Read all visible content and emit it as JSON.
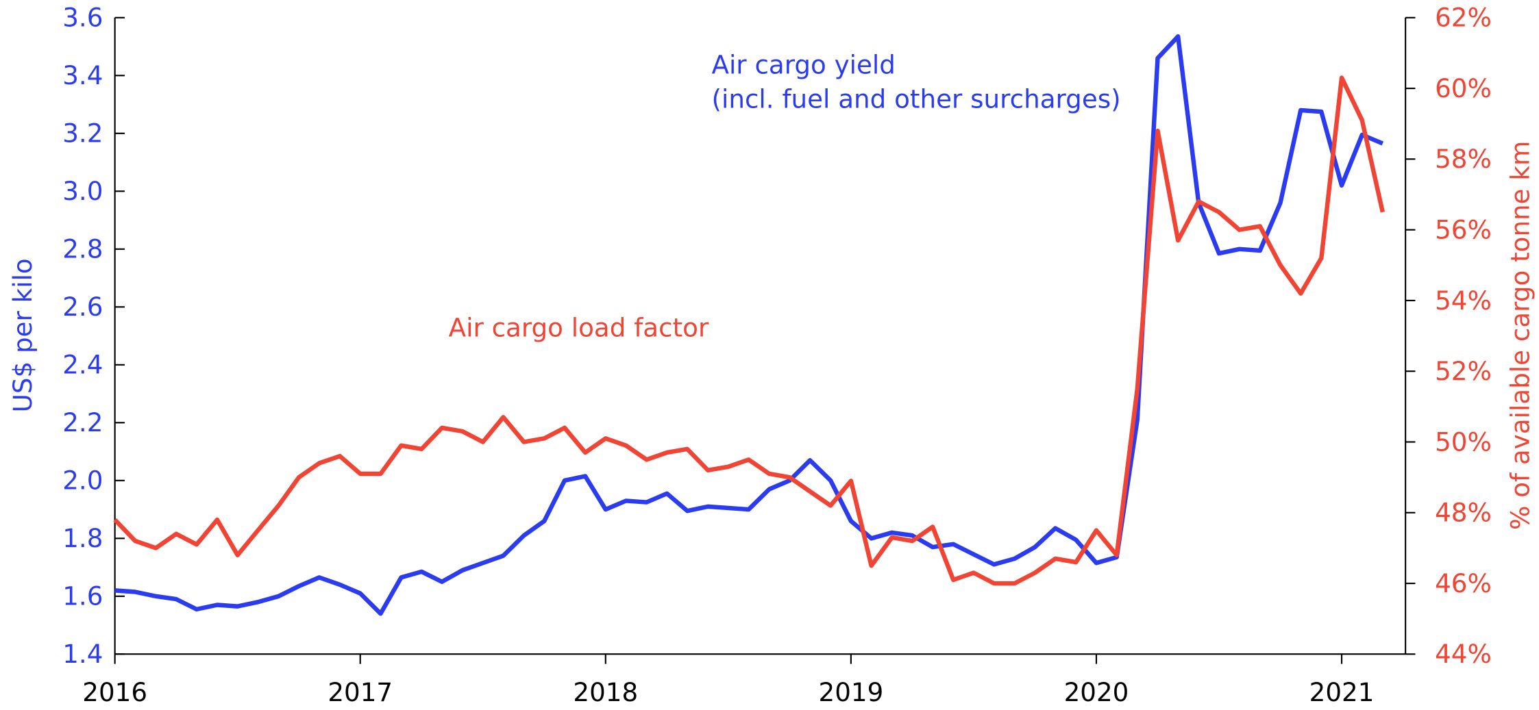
{
  "chart_data": {
    "type": "line",
    "x": [
      2016,
      2016.083,
      2016.167,
      2016.25,
      2016.333,
      2016.417,
      2016.5,
      2016.583,
      2016.667,
      2016.75,
      2016.833,
      2016.917,
      2017,
      2017.083,
      2017.167,
      2017.25,
      2017.333,
      2017.417,
      2017.5,
      2017.583,
      2017.667,
      2017.75,
      2017.833,
      2017.917,
      2018,
      2018.083,
      2018.167,
      2018.25,
      2018.333,
      2018.417,
      2018.5,
      2018.583,
      2018.667,
      2018.75,
      2018.833,
      2018.917,
      2019,
      2019.083,
      2019.167,
      2019.25,
      2019.333,
      2019.417,
      2019.5,
      2019.583,
      2019.667,
      2019.75,
      2019.833,
      2019.917,
      2020,
      2020.083,
      2020.167,
      2020.25,
      2020.333,
      2020.417,
      2020.5,
      2020.583,
      2020.667,
      2020.75,
      2020.833,
      2020.917,
      2021,
      2021.083,
      2021.167
    ],
    "series": [
      {
        "name": "Air cargo yield",
        "color": "#2b3cf0",
        "axis": "y",
        "values": [
          1.62,
          1.615,
          1.6,
          1.59,
          1.555,
          1.57,
          1.565,
          1.58,
          1.6,
          1.635,
          1.665,
          1.64,
          1.61,
          1.54,
          1.665,
          1.685,
          1.65,
          1.69,
          1.715,
          1.74,
          1.81,
          1.86,
          2.0,
          2.015,
          1.9,
          1.93,
          1.925,
          1.955,
          1.895,
          1.91,
          1.905,
          1.9,
          1.97,
          2.0,
          2.07,
          2.0,
          1.86,
          1.8,
          1.82,
          1.81,
          1.77,
          1.78,
          1.745,
          1.71,
          1.73,
          1.77,
          1.835,
          1.795,
          1.715,
          1.735,
          2.21,
          3.46,
          3.535,
          2.96,
          2.785,
          2.8,
          2.795,
          2.96,
          3.28,
          3.275,
          3.02,
          3.195,
          3.165
        ]
      },
      {
        "name": "Air cargo load factor",
        "color": "#f04434",
        "axis": "y2",
        "values": [
          47.8,
          47.2,
          47.0,
          47.4,
          47.1,
          47.8,
          46.8,
          47.5,
          48.2,
          49.0,
          49.4,
          49.6,
          49.1,
          49.1,
          49.9,
          49.8,
          50.4,
          50.3,
          50.0,
          50.7,
          50.0,
          50.1,
          50.4,
          49.7,
          50.1,
          49.9,
          49.5,
          49.7,
          49.8,
          49.2,
          49.3,
          49.5,
          49.1,
          49.0,
          48.6,
          48.2,
          48.9,
          46.5,
          47.3,
          47.2,
          47.6,
          46.1,
          46.3,
          46.0,
          46.0,
          46.3,
          46.7,
          46.6,
          47.5,
          46.8,
          51.5,
          58.8,
          55.7,
          56.8,
          56.5,
          56.0,
          56.1,
          55.0,
          54.2,
          55.2,
          60.3,
          59.1,
          56.5
        ]
      }
    ],
    "annotations": [
      "Air cargo yield",
      "(incl. fuel and other surcharges)",
      "Air cargo load factor"
    ],
    "y_label": "US$ per kilo",
    "y2_label": "% of available cargo tonne km",
    "xlim": [
      2016,
      2021.26
    ],
    "xticks": [
      2016,
      2017,
      2018,
      2019,
      2020,
      2021
    ],
    "ylim": [
      1.4,
      3.6
    ],
    "yticks": [
      {
        "value": 1.4,
        "label": "1.4"
      },
      {
        "value": 1.6,
        "label": "1.6"
      },
      {
        "value": 1.8,
        "label": "1.8"
      },
      {
        "value": 2.0,
        "label": "2.0"
      },
      {
        "value": 2.2,
        "label": "2.2"
      },
      {
        "value": 2.4,
        "label": "2.4"
      },
      {
        "value": 2.6,
        "label": "2.6"
      },
      {
        "value": 2.8,
        "label": "2.8"
      },
      {
        "value": 3.0,
        "label": "3.0"
      },
      {
        "value": 3.2,
        "label": "3.2"
      },
      {
        "value": 3.4,
        "label": "3.4"
      },
      {
        "value": 3.6,
        "label": "3.6"
      }
    ],
    "y2lim": [
      44,
      62
    ],
    "y2ticks": [
      {
        "value": 44,
        "label": "44%"
      },
      {
        "value": 46,
        "label": "46%"
      },
      {
        "value": 48,
        "label": "48%"
      },
      {
        "value": 50,
        "label": "50%"
      },
      {
        "value": 52,
        "label": "52%"
      },
      {
        "value": 54,
        "label": "54%"
      },
      {
        "value": 56,
        "label": "56%"
      },
      {
        "value": 58,
        "label": "58%"
      },
      {
        "value": 60,
        "label": "60%"
      },
      {
        "value": 62,
        "label": "62%"
      }
    ],
    "y_color": "#2b3cf0",
    "y2_color": "#f04434",
    "grid": false
  }
}
